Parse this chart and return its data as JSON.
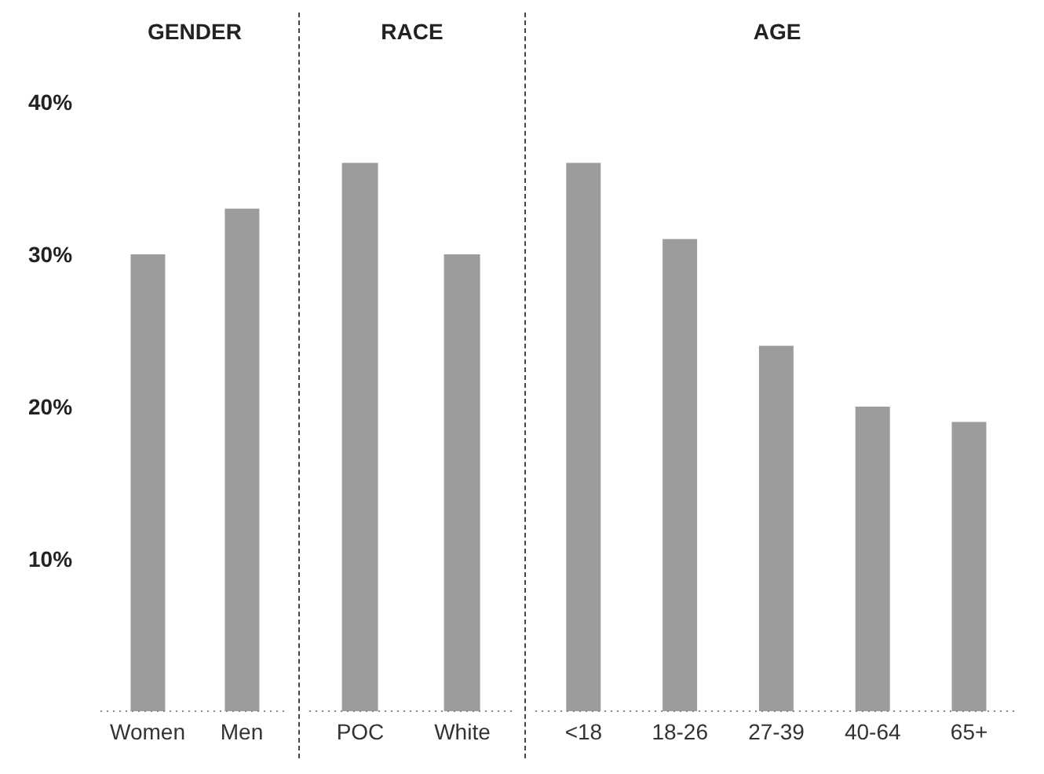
{
  "chart_data": [
    {
      "type": "bar",
      "title": "GENDER",
      "categories": [
        "Women",
        "Men"
      ],
      "values": [
        30,
        33
      ],
      "color": "#9c9c9c",
      "ylim": [
        0,
        40
      ],
      "yticks": [
        {
          "value": 10,
          "label": "10%"
        },
        {
          "value": 20,
          "label": "20%"
        },
        {
          "value": 30,
          "label": "30%"
        },
        {
          "value": 40,
          "label": "40%"
        }
      ]
    },
    {
      "type": "bar",
      "title": "RACE",
      "categories": [
        "POC",
        "White"
      ],
      "values": [
        36,
        30
      ],
      "color": "#9c9c9c",
      "ylim": [
        0,
        40
      ],
      "tick_labels": "x"
    },
    {
      "type": "bar",
      "title": "AGE",
      "categories": [
        "<18",
        "18-26",
        "27-39",
        "40-64",
        "65+"
      ],
      "values": [
        36,
        31,
        24,
        20,
        19
      ],
      "color": "#9c9c9c",
      "ylim": [
        0,
        40
      ],
      "tick_labels": "x"
    }
  ]
}
